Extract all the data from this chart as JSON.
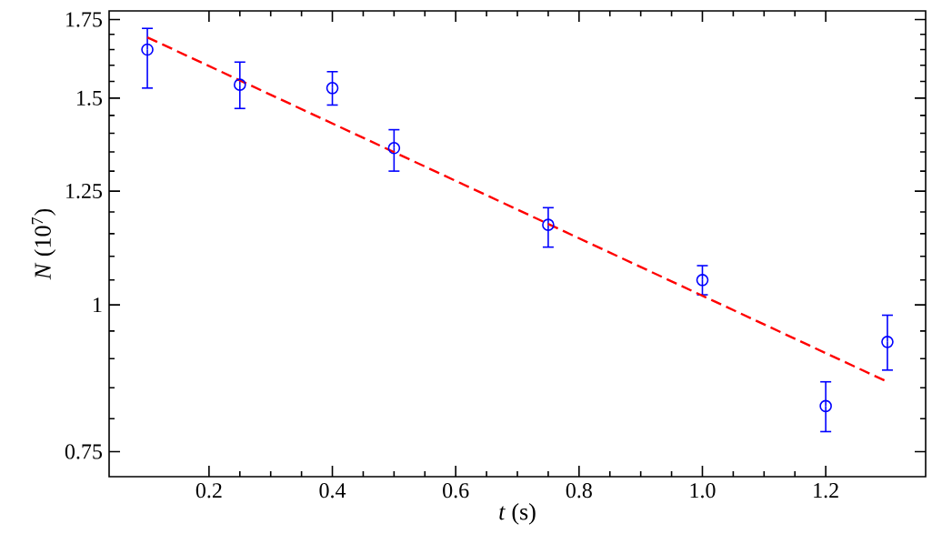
{
  "chart_data": {
    "type": "scatter",
    "xlabel": "*t* (s)",
    "ylabel": "*N* (10$^{7}$)",
    "log": "y",
    "xlim": [
      0.038,
      1.362
    ],
    "xticks": [
      0.2,
      0.4,
      0.6,
      0.8,
      {
        "value": 1.0,
        "label": "1.0"
      },
      1.2
    ],
    "ylim": [
      0.714,
      1.78
    ],
    "yticks": [
      0.75,
      1,
      1.25,
      1.5,
      1.75
    ],
    "series": [
      {
        "color": "#0000ff",
        "marker": "circle",
        "x": [
          0.1,
          0.25,
          0.4,
          0.5,
          0.75,
          1.0,
          1.2,
          1.3
        ],
        "values": [
          1.65,
          1.54,
          1.53,
          1.36,
          1.17,
          1.05,
          0.82,
          0.93
        ],
        "errors": [
          [
            1.53,
            1.72
          ],
          [
            1.47,
            1.61
          ],
          [
            1.48,
            1.58
          ],
          [
            1.3,
            1.41
          ],
          [
            1.12,
            1.21
          ],
          [
            1.02,
            1.08
          ],
          [
            0.78,
            0.86
          ],
          [
            0.88,
            0.98
          ]
        ]
      },
      {
        "type": "line",
        "color": "#ff0000",
        "line_style": "dashed",
        "x": [
          0.1,
          1.3
        ],
        "values": [
          1.69,
          0.86
        ]
      }
    ]
  }
}
